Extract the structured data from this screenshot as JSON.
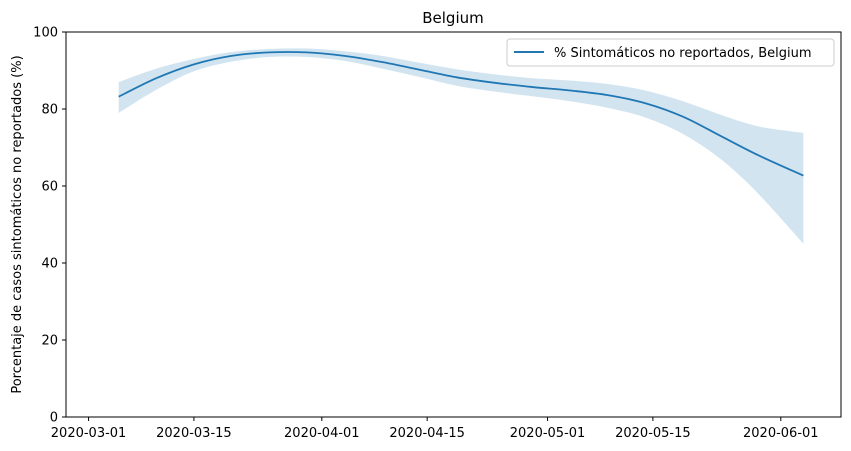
{
  "chart_data": {
    "type": "line",
    "title": "Belgium",
    "xlabel": "",
    "ylabel": "Porcentaje de casos sintomáticos no reportados (%)",
    "ylim": [
      0,
      100
    ],
    "xlim": [
      "2020-02-27",
      "2020-06-09"
    ],
    "x_ticks": [
      "2020-03-01",
      "2020-03-15",
      "2020-04-01",
      "2020-04-15",
      "2020-05-01",
      "2020-05-15",
      "2020-06-01"
    ],
    "y_ticks": [
      0,
      20,
      40,
      60,
      80,
      100
    ],
    "grid": false,
    "legend_position": "top-right",
    "series": [
      {
        "name": "% Sintomáticos no reportados, Belgium",
        "color": "#1f77b4",
        "band_color": "#1f77b4",
        "x": [
          "2020-03-05",
          "2020-03-10",
          "2020-03-15",
          "2020-03-20",
          "2020-03-25",
          "2020-03-30",
          "2020-04-04",
          "2020-04-09",
          "2020-04-14",
          "2020-04-19",
          "2020-04-24",
          "2020-04-29",
          "2020-05-04",
          "2020-05-09",
          "2020-05-14",
          "2020-05-19",
          "2020-05-24",
          "2020-05-29",
          "2020-06-04"
        ],
        "y": [
          83.2,
          88.0,
          91.6,
          93.8,
          94.7,
          94.7,
          93.8,
          92.2,
          90.2,
          88.2,
          86.8,
          85.7,
          84.8,
          83.6,
          81.5,
          78.0,
          73.0,
          68.0,
          62.7
        ],
        "lower": [
          79.0,
          85.0,
          89.8,
          92.3,
          93.5,
          93.5,
          92.5,
          90.5,
          88.3,
          86.0,
          84.5,
          83.3,
          82.0,
          80.3,
          77.8,
          73.5,
          67.0,
          58.0,
          45.0
        ],
        "upper": [
          87.0,
          90.5,
          93.0,
          94.8,
          95.6,
          95.7,
          95.0,
          93.8,
          92.0,
          90.3,
          89.0,
          88.0,
          87.4,
          86.5,
          84.8,
          82.0,
          78.5,
          75.5,
          73.8
        ]
      }
    ]
  }
}
